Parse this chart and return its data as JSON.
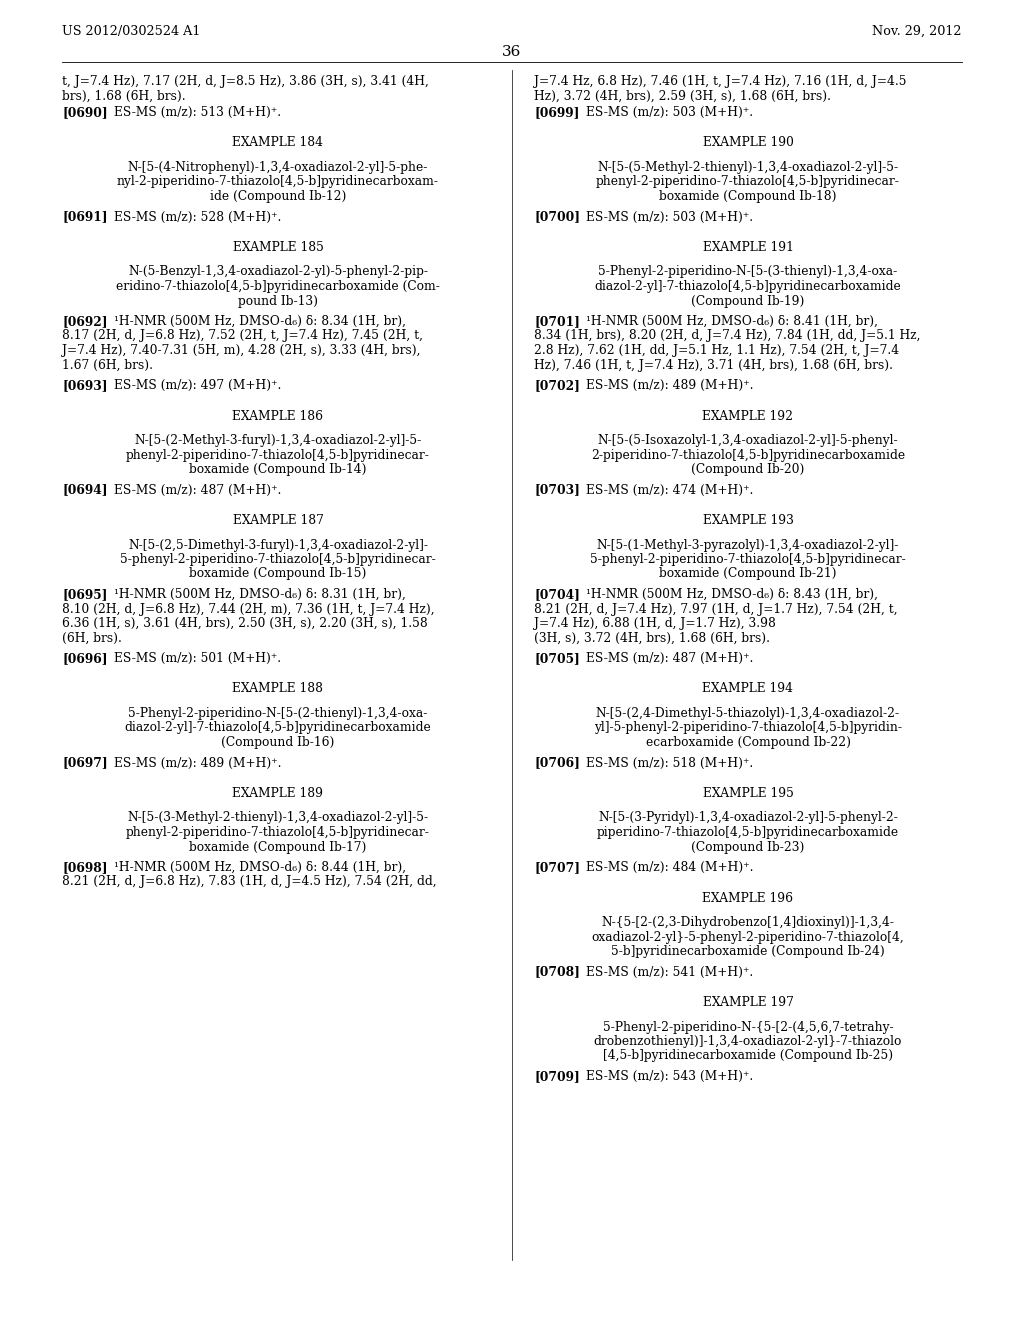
{
  "header_left": "US 2012/0302524 A1",
  "header_right": "Nov. 29, 2012",
  "page_number": "36",
  "background_color": "#ffffff",
  "left_column": [
    {
      "type": "continuation",
      "lines": [
        "t, J=7.4 Hz), 7.17 (2H, d, J=8.5 Hz), 3.86 (3H, s), 3.41 (4H,",
        "brs), 1.68 (6H, brs)."
      ]
    },
    {
      "type": "ref",
      "tag": "[0690]",
      "text": "ES-MS (m/z): 513 (M+H)⁺."
    },
    {
      "type": "example_header",
      "text": "EXAMPLE 184"
    },
    {
      "type": "compound_name",
      "lines": [
        "N-[5-(4-Nitrophenyl)-1,3,4-oxadiazol-2-yl]-5-phe-",
        "nyl-2-piperidino-7-thiazolo[4,5-b]pyridinecarboxam-",
        "ide (Compound Ib-12)"
      ]
    },
    {
      "type": "ref",
      "tag": "[0691]",
      "text": "ES-MS (m/z): 528 (M+H)⁺."
    },
    {
      "type": "example_header",
      "text": "EXAMPLE 185"
    },
    {
      "type": "compound_name",
      "lines": [
        "N-(5-Benzyl-1,3,4-oxadiazol-2-yl)-5-phenyl-2-pip-",
        "eridino-7-thiazolo[4,5-b]pyridinecarboxamide (Com-",
        "pound Ib-13)"
      ]
    },
    {
      "type": "ref_nmr",
      "tag": "[0692]",
      "lines": [
        "¹H-NMR (500M Hz, DMSO-d₆) δ: 8.34 (1H, br),",
        "8.17 (2H, d, J=6.8 Hz), 7.52 (2H, t, J=7.4 Hz), 7.45 (2H, t,",
        "J=7.4 Hz), 7.40-7.31 (5H, m), 4.28 (2H, s), 3.33 (4H, brs),",
        "1.67 (6H, brs)."
      ]
    },
    {
      "type": "ref",
      "tag": "[0693]",
      "text": "ES-MS (m/z): 497 (M+H)⁺."
    },
    {
      "type": "example_header",
      "text": "EXAMPLE 186"
    },
    {
      "type": "compound_name",
      "lines": [
        "N-[5-(2-Methyl-3-furyl)-1,3,4-oxadiazol-2-yl]-5-",
        "phenyl-2-piperidino-7-thiazolo[4,5-b]pyridinecar-",
        "boxamide (Compound Ib-14)"
      ]
    },
    {
      "type": "ref",
      "tag": "[0694]",
      "text": "ES-MS (m/z): 487 (M+H)⁺."
    },
    {
      "type": "example_header",
      "text": "EXAMPLE 187"
    },
    {
      "type": "compound_name",
      "lines": [
        "N-[5-(2,5-Dimethyl-3-furyl)-1,3,4-oxadiazol-2-yl]-",
        "5-phenyl-2-piperidino-7-thiazolo[4,5-b]pyridinecar-",
        "boxamide (Compound Ib-15)"
      ]
    },
    {
      "type": "ref_nmr",
      "tag": "[0695]",
      "lines": [
        "¹H-NMR (500M Hz, DMSO-d₆) δ: 8.31 (1H, br),",
        "8.10 (2H, d, J=6.8 Hz), 7.44 (2H, m), 7.36 (1H, t, J=7.4 Hz),",
        "6.36 (1H, s), 3.61 (4H, brs), 2.50 (3H, s), 2.20 (3H, s), 1.58",
        "(6H, brs)."
      ]
    },
    {
      "type": "ref",
      "tag": "[0696]",
      "text": "ES-MS (m/z): 501 (M+H)⁺."
    },
    {
      "type": "example_header",
      "text": "EXAMPLE 188"
    },
    {
      "type": "compound_name",
      "lines": [
        "5-Phenyl-2-piperidino-N-[5-(2-thienyl)-1,3,4-oxa-",
        "diazol-2-yl]-7-thiazolo[4,5-b]pyridinecarboxamide",
        "(Compound Ib-16)"
      ]
    },
    {
      "type": "ref",
      "tag": "[0697]",
      "text": "ES-MS (m/z): 489 (M+H)⁺."
    },
    {
      "type": "example_header",
      "text": "EXAMPLE 189"
    },
    {
      "type": "compound_name",
      "lines": [
        "N-[5-(3-Methyl-2-thienyl)-1,3,4-oxadiazol-2-yl]-5-",
        "phenyl-2-piperidino-7-thiazolo[4,5-b]pyridinecar-",
        "boxamide (Compound Ib-17)"
      ]
    },
    {
      "type": "ref_nmr",
      "tag": "[0698]",
      "lines": [
        "¹H-NMR (500M Hz, DMSO-d₆) δ: 8.44 (1H, br),",
        "8.21 (2H, d, J=6.8 Hz), 7.83 (1H, d, J=4.5 Hz), 7.54 (2H, dd,"
      ]
    }
  ],
  "right_column": [
    {
      "type": "continuation",
      "lines": [
        "J=7.4 Hz, 6.8 Hz), 7.46 (1H, t, J=7.4 Hz), 7.16 (1H, d, J=4.5",
        "Hz), 3.72 (4H, brs), 2.59 (3H, s), 1.68 (6H, brs)."
      ]
    },
    {
      "type": "ref",
      "tag": "[0699]",
      "text": "ES-MS (m/z): 503 (M+H)⁺."
    },
    {
      "type": "example_header",
      "text": "EXAMPLE 190"
    },
    {
      "type": "compound_name",
      "lines": [
        "N-[5-(5-Methyl-2-thienyl)-1,3,4-oxadiazol-2-yl]-5-",
        "phenyl-2-piperidino-7-thiazolo[4,5-b]pyridinecar-",
        "boxamide (Compound Ib-18)"
      ]
    },
    {
      "type": "ref",
      "tag": "[0700]",
      "text": "ES-MS (m/z): 503 (M+H)⁺."
    },
    {
      "type": "example_header",
      "text": "EXAMPLE 191"
    },
    {
      "type": "compound_name",
      "lines": [
        "5-Phenyl-2-piperidino-N-[5-(3-thienyl)-1,3,4-oxa-",
        "diazol-2-yl]-7-thiazolo[4,5-b]pyridinecarboxamide",
        "(Compound Ib-19)"
      ]
    },
    {
      "type": "ref_nmr",
      "tag": "[0701]",
      "lines": [
        "¹H-NMR (500M Hz, DMSO-d₆) δ: 8.41 (1H, br),",
        "8.34 (1H, brs), 8.20 (2H, d, J=7.4 Hz), 7.84 (1H, dd, J=5.1 Hz,",
        "2.8 Hz), 7.62 (1H, dd, J=5.1 Hz, 1.1 Hz), 7.54 (2H, t, J=7.4",
        "Hz), 7.46 (1H, t, J=7.4 Hz), 3.71 (4H, brs), 1.68 (6H, brs)."
      ]
    },
    {
      "type": "ref",
      "tag": "[0702]",
      "text": "ES-MS (m/z): 489 (M+H)⁺."
    },
    {
      "type": "example_header",
      "text": "EXAMPLE 192"
    },
    {
      "type": "compound_name",
      "lines": [
        "N-[5-(5-Isoxazolyl-1,3,4-oxadiazol-2-yl]-5-phenyl-",
        "2-piperidino-7-thiazolo[4,5-b]pyridinecarboxamide",
        "(Compound Ib-20)"
      ]
    },
    {
      "type": "ref",
      "tag": "[0703]",
      "text": "ES-MS (m/z): 474 (M+H)⁺."
    },
    {
      "type": "example_header",
      "text": "EXAMPLE 193"
    },
    {
      "type": "compound_name",
      "lines": [
        "N-[5-(1-Methyl-3-pyrazolyl)-1,3,4-oxadiazol-2-yl]-",
        "5-phenyl-2-piperidino-7-thiazolo[4,5-b]pyridinecar-",
        "boxamide (Compound Ib-21)"
      ]
    },
    {
      "type": "ref_nmr",
      "tag": "[0704]",
      "lines": [
        "¹H-NMR (500M Hz, DMSO-d₆) δ: 8.43 (1H, br),",
        "8.21 (2H, d, J=7.4 Hz), 7.97 (1H, d, J=1.7 Hz), 7.54 (2H, t,",
        "J=7.4 Hz), 6.88 (1H, d, J=1.7 Hz), 3.98",
        "(3H, s), 3.72 (4H, brs), 1.68 (6H, brs)."
      ]
    },
    {
      "type": "ref",
      "tag": "[0705]",
      "text": "ES-MS (m/z): 487 (M+H)⁺."
    },
    {
      "type": "example_header",
      "text": "EXAMPLE 194"
    },
    {
      "type": "compound_name",
      "lines": [
        "N-[5-(2,4-Dimethyl-5-thiazolyl)-1,3,4-oxadiazol-2-",
        "yl]-5-phenyl-2-piperidino-7-thiazolo[4,5-b]pyridin-",
        "ecarboxamide (Compound Ib-22)"
      ]
    },
    {
      "type": "ref",
      "tag": "[0706]",
      "text": "ES-MS (m/z): 518 (M+H)⁺."
    },
    {
      "type": "example_header",
      "text": "EXAMPLE 195"
    },
    {
      "type": "compound_name",
      "lines": [
        "N-[5-(3-Pyridyl)-1,3,4-oxadiazol-2-yl]-5-phenyl-2-",
        "piperidino-7-thiazolo[4,5-b]pyridinecarboxamide",
        "(Compound Ib-23)"
      ]
    },
    {
      "type": "ref",
      "tag": "[0707]",
      "text": "ES-MS (m/z): 484 (M+H)⁺."
    },
    {
      "type": "example_header",
      "text": "EXAMPLE 196"
    },
    {
      "type": "compound_name",
      "lines": [
        "N-{5-[2-(2,3-Dihydrobenzo[1,4]dioxinyl)]-1,3,4-",
        "oxadiazol-2-yl}-5-phenyl-2-piperidino-7-thiazolo[4,",
        "5-b]pyridinecarboxamide (Compound Ib-24)"
      ]
    },
    {
      "type": "ref",
      "tag": "[0708]",
      "text": "ES-MS (m/z): 541 (M+H)⁺."
    },
    {
      "type": "example_header",
      "text": "EXAMPLE 197"
    },
    {
      "type": "compound_name",
      "lines": [
        "5-Phenyl-2-piperidino-N-{5-[2-(4,5,6,7-tetrahy-",
        "drobenzothienyl)]-1,3,4-oxadiazol-2-yl}-7-thiazolo",
        "[4,5-b]pyridinecarboxamide (Compound Ib-25)"
      ]
    },
    {
      "type": "ref",
      "tag": "[0709]",
      "text": "ES-MS (m/z): 543 (M+H)⁺."
    }
  ]
}
